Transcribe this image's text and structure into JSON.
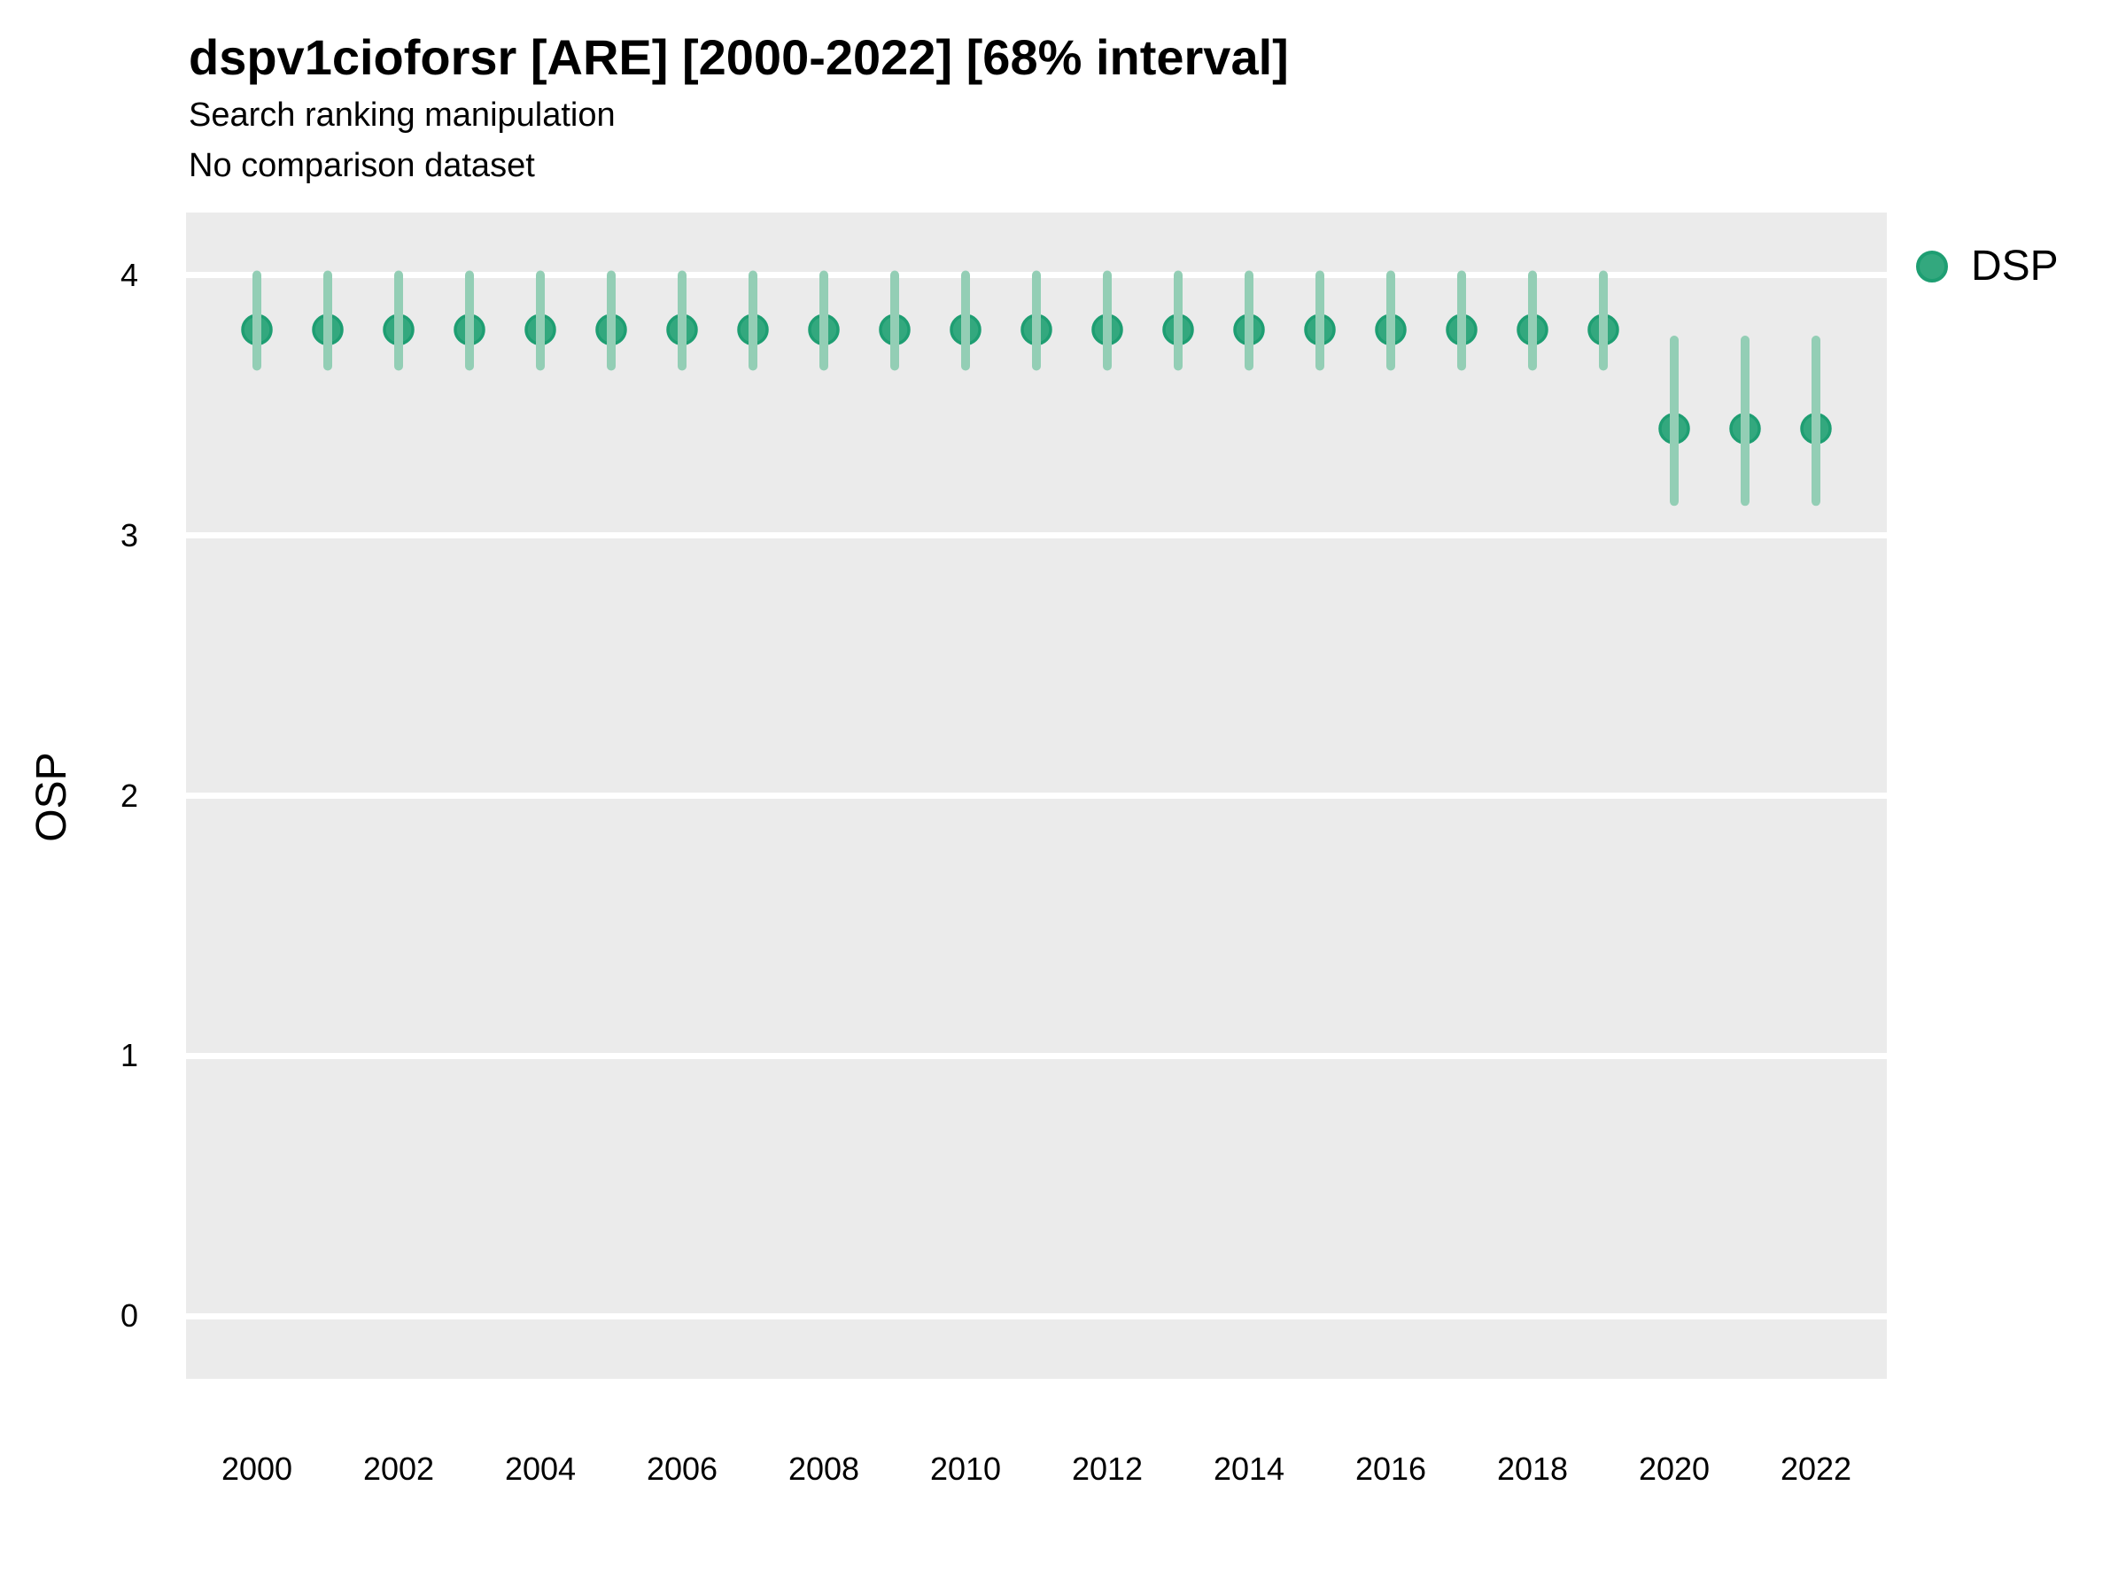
{
  "header": {
    "title": "dspv1cioforsr [ARE] [2000-2022] [68% interval]",
    "subtitle1": "Search ranking manipulation",
    "subtitle2": "No comparison dataset"
  },
  "legend": {
    "items": [
      {
        "label": "DSP"
      }
    ]
  },
  "colors": {
    "page_bg": "#ffffff",
    "panel_bg": "#ebebeb",
    "gridline": "#ffffff",
    "point_fill": "#33a87e",
    "point_stroke": "#1e9e72",
    "interval_bar": "#93ceb5",
    "text": "#000000"
  },
  "chart_data": {
    "type": "pointrange",
    "title": "dspv1cioforsr [ARE] [2000-2022] [68% interval]",
    "subtitle": [
      "Search ranking manipulation",
      "No comparison dataset"
    ],
    "xlabel": "",
    "ylabel": "OSP",
    "interval": "68%",
    "grid": "horizontal-major-only",
    "legend_position": "right",
    "xlim": [
      1999,
      2023
    ],
    "ylim": [
      -0.24,
      4.24
    ],
    "x_ticks": [
      2000,
      2002,
      2004,
      2006,
      2008,
      2010,
      2012,
      2014,
      2016,
      2018,
      2020,
      2022
    ],
    "y_ticks": [
      0,
      1,
      2,
      3,
      4
    ],
    "series": [
      {
        "name": "DSP",
        "x": [
          2000,
          2001,
          2002,
          2003,
          2004,
          2005,
          2006,
          2007,
          2008,
          2009,
          2010,
          2011,
          2012,
          2013,
          2014,
          2015,
          2016,
          2017,
          2018,
          2019,
          2020,
          2021,
          2022
        ],
        "y": [
          3.79,
          3.79,
          3.79,
          3.79,
          3.79,
          3.79,
          3.79,
          3.79,
          3.79,
          3.79,
          3.79,
          3.79,
          3.79,
          3.79,
          3.79,
          3.79,
          3.79,
          3.79,
          3.79,
          3.79,
          3.41,
          3.41,
          3.41
        ],
        "y_lo": [
          3.65,
          3.65,
          3.65,
          3.65,
          3.65,
          3.65,
          3.65,
          3.65,
          3.65,
          3.65,
          3.65,
          3.65,
          3.65,
          3.65,
          3.65,
          3.65,
          3.65,
          3.65,
          3.65,
          3.65,
          3.13,
          3.13,
          3.13
        ],
        "y_hi": [
          4.0,
          4.0,
          4.0,
          4.0,
          4.0,
          4.0,
          4.0,
          4.0,
          4.0,
          4.0,
          4.0,
          4.0,
          4.0,
          4.0,
          4.0,
          4.0,
          4.0,
          4.0,
          4.0,
          4.0,
          3.75,
          3.75,
          3.75
        ]
      }
    ]
  }
}
